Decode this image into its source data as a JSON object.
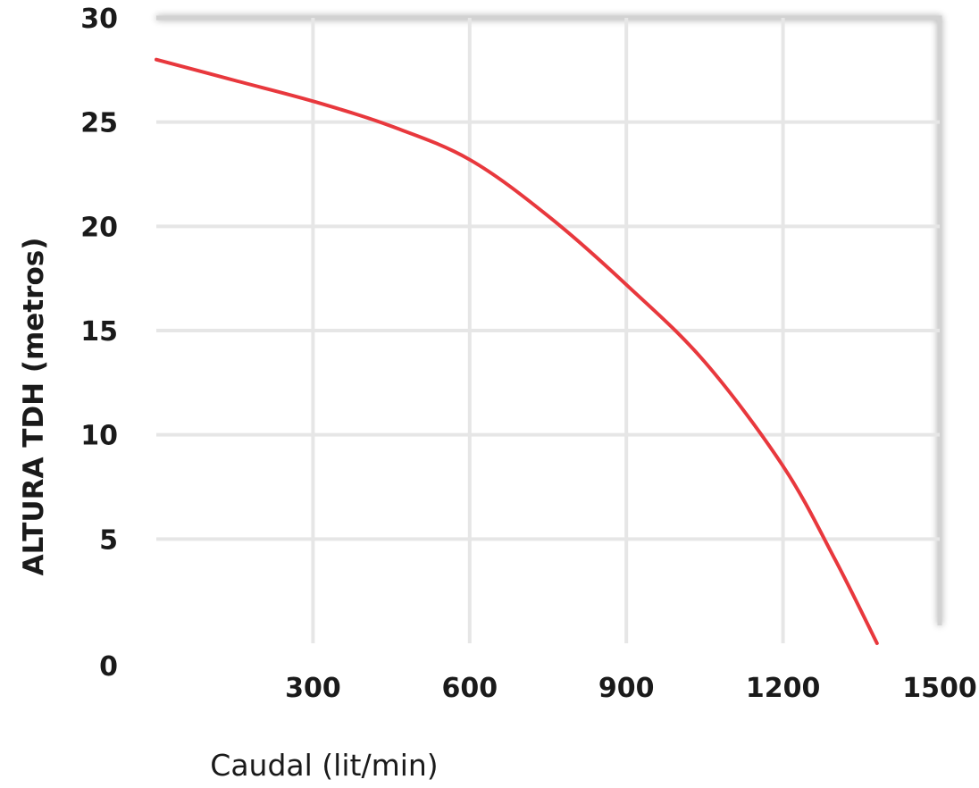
{
  "chart_data": {
    "type": "line",
    "title": "",
    "xlabel": "Caudal (lit/min)",
    "ylabel": "ALTURA TDH (metros)",
    "xlim": [
      0,
      1500
    ],
    "ylim": [
      0,
      30
    ],
    "x_ticks": [
      {
        "value": 0,
        "label": "0"
      },
      {
        "value": 300,
        "label": "300"
      },
      {
        "value": 600,
        "label": "600"
      },
      {
        "value": 900,
        "label": "900"
      },
      {
        "value": 1200,
        "label": "1200"
      },
      {
        "value": 1500,
        "label": "1500"
      }
    ],
    "y_ticks": [
      {
        "value": 5,
        "label": "5"
      },
      {
        "value": 10,
        "label": "10"
      },
      {
        "value": 15,
        "label": "15"
      },
      {
        "value": 20,
        "label": "20"
      },
      {
        "value": 25,
        "label": "25"
      },
      {
        "value": 30,
        "label": "30"
      }
    ],
    "grid": true,
    "series": [
      {
        "color": "#e8383d",
        "points": [
          {
            "x": 0,
            "y": 28.0
          },
          {
            "x": 150,
            "y": 27.0
          },
          {
            "x": 300,
            "y": 26.0
          },
          {
            "x": 450,
            "y": 24.8
          },
          {
            "x": 600,
            "y": 23.2
          },
          {
            "x": 750,
            "y": 20.5
          },
          {
            "x": 900,
            "y": 17.2
          },
          {
            "x": 1050,
            "y": 13.5
          },
          {
            "x": 1200,
            "y": 8.5
          },
          {
            "x": 1300,
            "y": 4.0
          },
          {
            "x": 1380,
            "y": 0.0
          }
        ]
      }
    ],
    "colors": {
      "grid": "#e6e6e6",
      "frame": "#d2d2d2",
      "text": "#1a1a1a"
    }
  }
}
